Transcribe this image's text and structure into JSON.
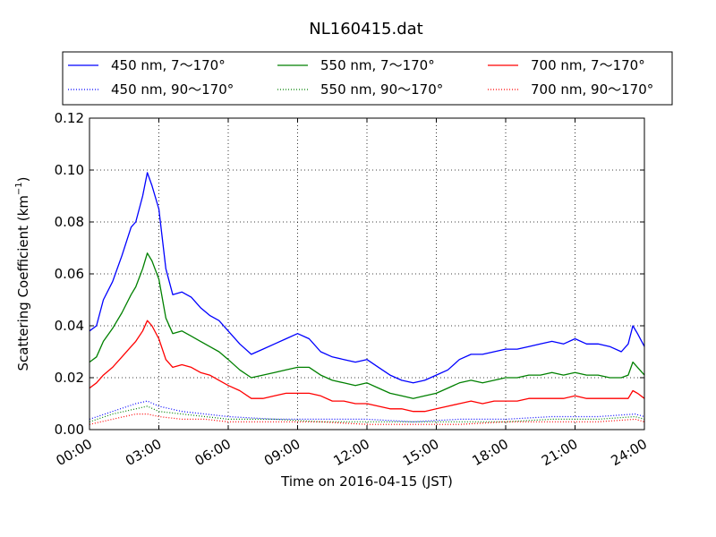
{
  "chart_data": {
    "type": "line",
    "title": "NL160415.dat",
    "xlabel": "Time on 2016-04-15 (JST)",
    "ylabel": "Scattering Coefficient (km",
    "ylabel_sup": "−1",
    "ylabel_close": ")",
    "xlim": [
      0,
      24
    ],
    "ylim": [
      0,
      0.12
    ],
    "grid": true,
    "legend_position": "top",
    "x_ticks": [
      0,
      3,
      6,
      9,
      12,
      15,
      18,
      21,
      24
    ],
    "x_tick_labels": [
      "00:00",
      "03:00",
      "06:00",
      "09:00",
      "12:00",
      "15:00",
      "18:00",
      "21:00",
      "24:00"
    ],
    "y_ticks": [
      0,
      0.02,
      0.04,
      0.06,
      0.08,
      0.1,
      0.12
    ],
    "y_tick_labels": [
      "0.00",
      "0.02",
      "0.04",
      "0.06",
      "0.08",
      "0.10",
      "0.12"
    ],
    "series": [
      {
        "name": "450 nm, 7～170°",
        "color": "#0000ff",
        "style": "solid",
        "x": [
          0.0,
          0.3,
          0.6,
          1.0,
          1.4,
          1.8,
          2.0,
          2.3,
          2.5,
          2.7,
          3.0,
          3.3,
          3.6,
          4.0,
          4.4,
          4.8,
          5.2,
          5.6,
          6.0,
          6.5,
          7.0,
          7.5,
          8.0,
          8.5,
          9.0,
          9.5,
          10.0,
          10.5,
          11.0,
          11.5,
          12.0,
          12.5,
          13.0,
          13.5,
          14.0,
          14.5,
          15.0,
          15.5,
          16.0,
          16.5,
          17.0,
          17.5,
          18.0,
          18.5,
          19.0,
          19.5,
          20.0,
          20.5,
          21.0,
          21.5,
          22.0,
          22.5,
          23.0,
          23.3,
          23.5,
          23.7,
          24.0
        ],
        "y": [
          0.038,
          0.04,
          0.05,
          0.057,
          0.067,
          0.078,
          0.08,
          0.09,
          0.099,
          0.094,
          0.085,
          0.062,
          0.052,
          0.053,
          0.051,
          0.047,
          0.044,
          0.042,
          0.038,
          0.033,
          0.029,
          0.031,
          0.033,
          0.035,
          0.037,
          0.035,
          0.03,
          0.028,
          0.027,
          0.026,
          0.027,
          0.024,
          0.021,
          0.019,
          0.018,
          0.019,
          0.021,
          0.023,
          0.027,
          0.029,
          0.029,
          0.03,
          0.031,
          0.031,
          0.032,
          0.033,
          0.034,
          0.033,
          0.035,
          0.033,
          0.033,
          0.032,
          0.03,
          0.033,
          0.04,
          0.037,
          0.032
        ]
      },
      {
        "name": "450 nm, 90～170°",
        "color": "#0000ff",
        "style": "dotted",
        "x": [
          0,
          1,
          2,
          2.5,
          3,
          4,
          5,
          6,
          8,
          10,
          12,
          14,
          16,
          18,
          20,
          22,
          23.6,
          24
        ],
        "y": [
          0.004,
          0.007,
          0.01,
          0.011,
          0.009,
          0.007,
          0.006,
          0.005,
          0.004,
          0.004,
          0.004,
          0.003,
          0.004,
          0.004,
          0.005,
          0.005,
          0.006,
          0.005
        ]
      },
      {
        "name": "550 nm, 7～170°",
        "color": "#008000",
        "style": "solid",
        "x": [
          0.0,
          0.3,
          0.6,
          1.0,
          1.4,
          1.8,
          2.0,
          2.3,
          2.5,
          2.7,
          3.0,
          3.3,
          3.6,
          4.0,
          4.4,
          4.8,
          5.2,
          5.6,
          6.0,
          6.5,
          7.0,
          7.5,
          8.0,
          8.5,
          9.0,
          9.5,
          10.0,
          10.5,
          11.0,
          11.5,
          12.0,
          12.5,
          13.0,
          13.5,
          14.0,
          14.5,
          15.0,
          15.5,
          16.0,
          16.5,
          17.0,
          17.5,
          18.0,
          18.5,
          19.0,
          19.5,
          20.0,
          20.5,
          21.0,
          21.5,
          22.0,
          22.5,
          23.0,
          23.3,
          23.5,
          23.7,
          24.0
        ],
        "y": [
          0.026,
          0.028,
          0.034,
          0.039,
          0.045,
          0.052,
          0.055,
          0.062,
          0.068,
          0.065,
          0.058,
          0.043,
          0.037,
          0.038,
          0.036,
          0.034,
          0.032,
          0.03,
          0.027,
          0.023,
          0.02,
          0.021,
          0.022,
          0.023,
          0.024,
          0.024,
          0.021,
          0.019,
          0.018,
          0.017,
          0.018,
          0.016,
          0.014,
          0.013,
          0.012,
          0.013,
          0.014,
          0.016,
          0.018,
          0.019,
          0.018,
          0.019,
          0.02,
          0.02,
          0.021,
          0.021,
          0.022,
          0.021,
          0.022,
          0.021,
          0.021,
          0.02,
          0.02,
          0.021,
          0.026,
          0.024,
          0.021
        ]
      },
      {
        "name": "550 nm, 90～170°",
        "color": "#008000",
        "style": "dotted",
        "x": [
          0,
          1,
          2,
          2.5,
          3,
          4,
          5,
          6,
          8,
          10,
          12,
          14,
          16,
          18,
          20,
          22,
          23.6,
          24
        ],
        "y": [
          0.003,
          0.006,
          0.008,
          0.009,
          0.007,
          0.006,
          0.005,
          0.004,
          0.004,
          0.003,
          0.003,
          0.003,
          0.003,
          0.003,
          0.004,
          0.004,
          0.005,
          0.004
        ]
      },
      {
        "name": "700 nm, 7～170°",
        "color": "#ff0000",
        "style": "solid",
        "x": [
          0.0,
          0.3,
          0.6,
          1.0,
          1.4,
          1.8,
          2.0,
          2.3,
          2.5,
          2.7,
          3.0,
          3.3,
          3.6,
          4.0,
          4.4,
          4.8,
          5.2,
          5.6,
          6.0,
          6.5,
          7.0,
          7.5,
          8.0,
          8.5,
          9.0,
          9.5,
          10.0,
          10.5,
          11.0,
          11.5,
          12.0,
          12.5,
          13.0,
          13.5,
          14.0,
          14.5,
          15.0,
          15.5,
          16.0,
          16.5,
          17.0,
          17.5,
          18.0,
          18.5,
          19.0,
          19.5,
          20.0,
          20.5,
          21.0,
          21.5,
          22.0,
          22.5,
          23.0,
          23.3,
          23.5,
          23.7,
          24.0
        ],
        "y": [
          0.016,
          0.018,
          0.021,
          0.024,
          0.028,
          0.032,
          0.034,
          0.038,
          0.042,
          0.04,
          0.035,
          0.027,
          0.024,
          0.025,
          0.024,
          0.022,
          0.021,
          0.019,
          0.017,
          0.015,
          0.012,
          0.012,
          0.013,
          0.014,
          0.014,
          0.014,
          0.013,
          0.011,
          0.011,
          0.01,
          0.01,
          0.009,
          0.008,
          0.008,
          0.007,
          0.007,
          0.008,
          0.009,
          0.01,
          0.011,
          0.01,
          0.011,
          0.011,
          0.011,
          0.012,
          0.012,
          0.012,
          0.012,
          0.013,
          0.012,
          0.012,
          0.012,
          0.012,
          0.012,
          0.015,
          0.014,
          0.012
        ]
      },
      {
        "name": "700 nm, 90～170°",
        "color": "#ff0000",
        "style": "dotted",
        "x": [
          0,
          1,
          2,
          2.5,
          3,
          4,
          5,
          6,
          8,
          10,
          12,
          14,
          16,
          18,
          20,
          22,
          23.6,
          24
        ],
        "y": [
          0.002,
          0.004,
          0.006,
          0.006,
          0.005,
          0.004,
          0.004,
          0.003,
          0.003,
          0.003,
          0.002,
          0.002,
          0.002,
          0.003,
          0.003,
          0.003,
          0.004,
          0.003
        ]
      }
    ]
  }
}
